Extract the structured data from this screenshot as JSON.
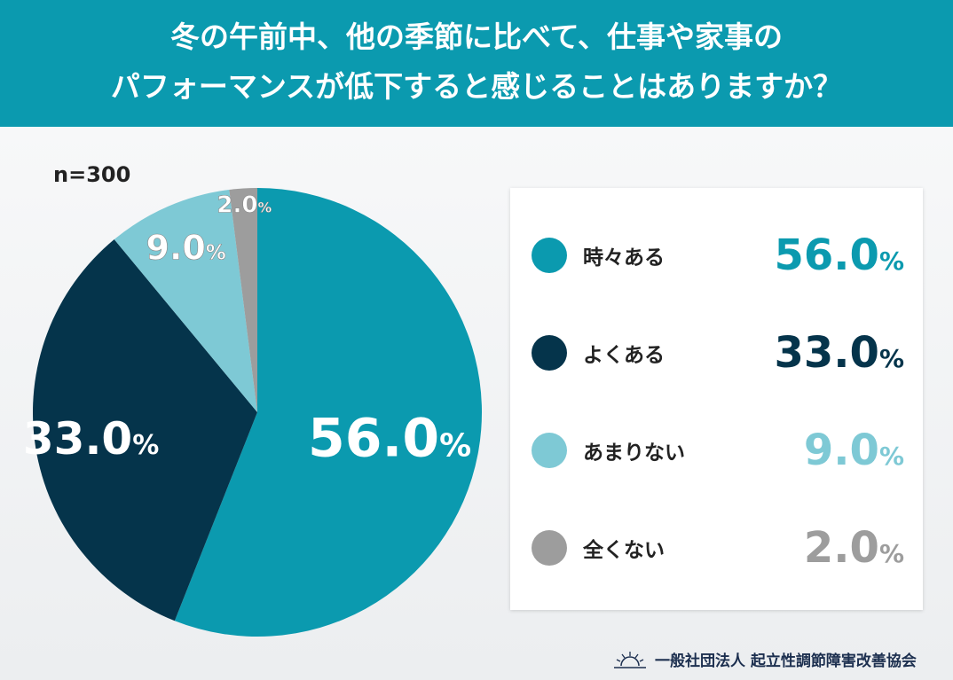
{
  "header": {
    "line1": "冬の午前中、他の季節に比べて、仕事や家事の",
    "line2": "パフォーマンスが低下すると感じることはありますか？"
  },
  "sample": "n=300",
  "chart_data": {
    "type": "pie",
    "title": "冬の午前中、他の季節に比べて、仕事や家事のパフォーマンスが低下すると感じることはありますか？",
    "categories": [
      "時々ある",
      "よくある",
      "あまりない",
      "全くない"
    ],
    "values": [
      56.0,
      33.0,
      9.0,
      2.0
    ],
    "colors": [
      "#0b9aaf",
      "#05344b",
      "#7ec9d5",
      "#9d9d9d"
    ],
    "labels": [
      "56.0",
      "33.0",
      "9.0",
      "2.0"
    ],
    "unit": "%",
    "legend": "right"
  },
  "footer": {
    "org": "一般社団法人 起立性調節障害改善協会"
  }
}
